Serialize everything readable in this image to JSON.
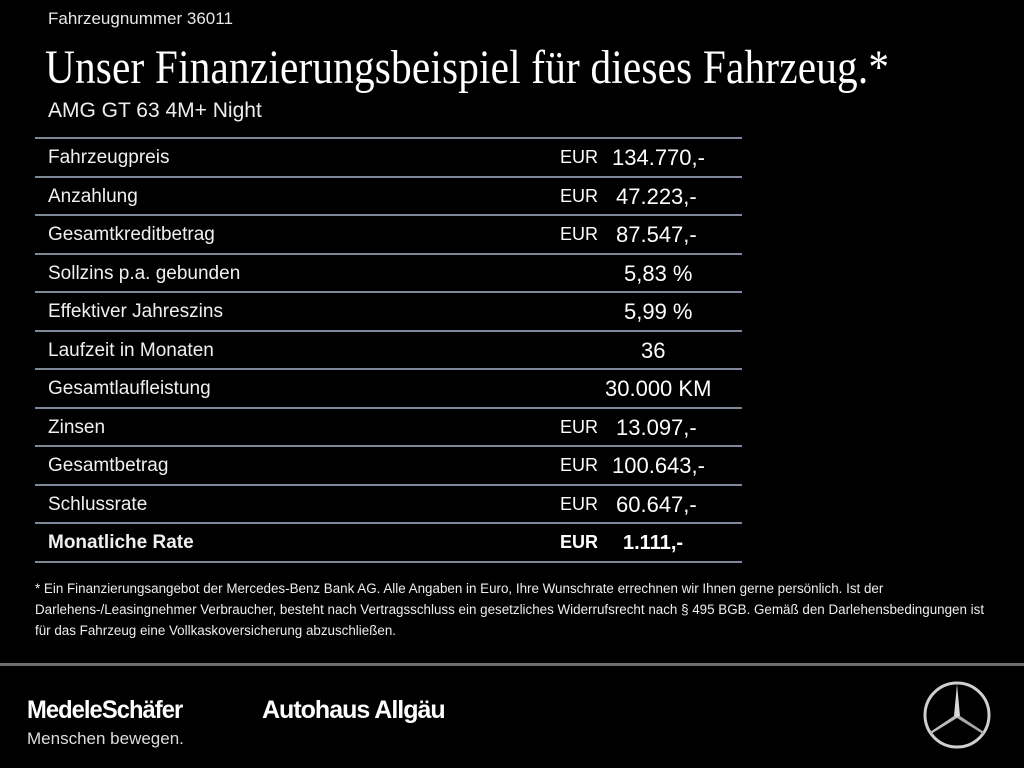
{
  "vehicle_number": "Fahrzeugnummer 36011",
  "title": "Unser Finanzierungsbeispiel für dieses Fahrzeug.*",
  "model": "AMG GT 63 4M+ Night",
  "rows": [
    {
      "label": "Fahrzeugpreis",
      "currency": "EUR",
      "value": "134.770,-"
    },
    {
      "label": "Anzahlung",
      "currency": "EUR",
      "value": "47.223,-"
    },
    {
      "label": "Gesamtkreditbetrag",
      "currency": "EUR",
      "value": "87.547,-"
    },
    {
      "label": "Sollzins p.a. gebunden",
      "value": "5,83 %"
    },
    {
      "label": "Effektiver Jahreszins",
      "value": "5,99 %"
    },
    {
      "label": "Laufzeit in Monaten",
      "value": "36"
    },
    {
      "label": "Gesamtlaufleistung",
      "value": "30.000 KM"
    },
    {
      "label": "Zinsen",
      "currency": "EUR",
      "value": "13.097,-"
    },
    {
      "label": "Gesamtbetrag",
      "currency": "EUR",
      "value": "100.643,-"
    },
    {
      "label": "Schlussrate",
      "currency": "EUR",
      "value": "60.647,-"
    },
    {
      "label": "Monatliche Rate",
      "currency": "EUR",
      "value": "1.111,-"
    }
  ],
  "footnote": "* Ein Finanzierungsangebot der Mercedes-Benz Bank AG. Alle Angaben in Euro, Ihre Wunschrate errechnen wir Ihnen gerne persönlich. Ist der Darlehens-/Leasingnehmer Verbraucher, besteht nach Vertragsschluss ein gesetzliches Widerrufsrecht nach § 495 BGB. Gemäß den Darlehensbedingungen ist für das Fahrzeug eine Vollkaskoversicherung abzuschließen.",
  "footer": {
    "brand1": "MedeleSchäfer",
    "slogan": "Menschen bewegen.",
    "brand2": "Autohaus Allgäu",
    "logo_icon": "mercedes-star-icon"
  },
  "colors": {
    "background": "#000000",
    "row_divider": "#7d8898"
  }
}
